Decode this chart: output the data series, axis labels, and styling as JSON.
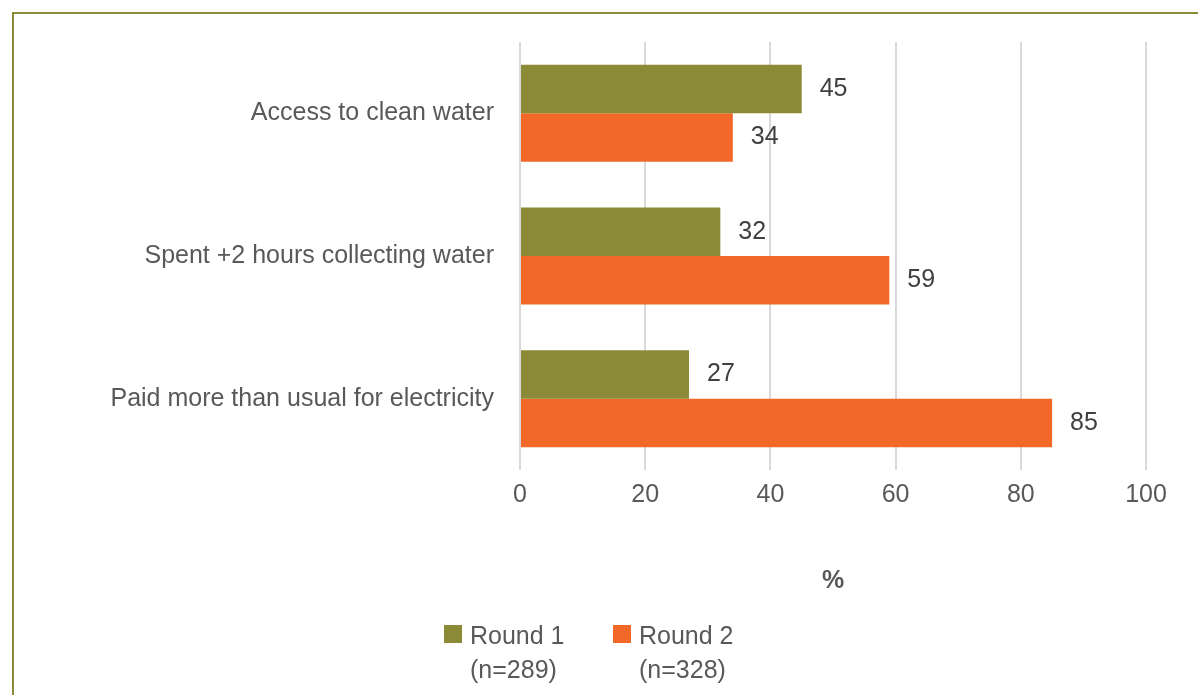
{
  "chart_data": {
    "type": "bar",
    "orientation": "horizontal",
    "xlabel": "%",
    "categories": [
      "Access to clean water",
      "Spent +2 hours collecting water",
      "Paid more than usual for electricity"
    ],
    "series": [
      {
        "name": "Round 1 (n=289)",
        "color": "#8b8b37",
        "values": [
          45,
          32,
          27
        ]
      },
      {
        "name": "Round 2 (n=328)",
        "color": "#f26829",
        "values": [
          34,
          59,
          85
        ]
      }
    ],
    "xlim": [
      0,
      100
    ],
    "xticks": [
      0,
      20,
      40,
      60,
      80,
      100
    ],
    "grid": "x",
    "legend": "bottom",
    "data_labels": true
  }
}
